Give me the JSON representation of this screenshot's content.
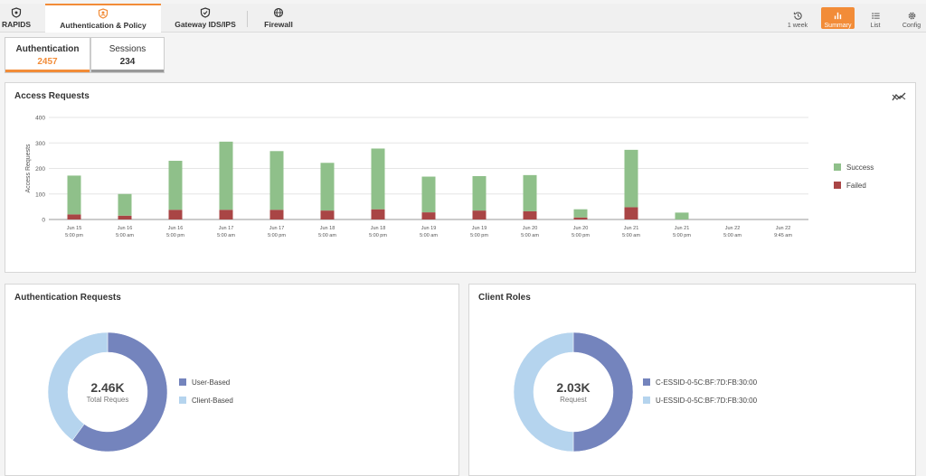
{
  "nav": {
    "tabs": [
      {
        "label": "RAPIDS",
        "icon": "shield-icon"
      },
      {
        "label": "Authentication & Policy",
        "icon": "shield-user-icon"
      },
      {
        "label": "Gateway IDS/IPS",
        "icon": "shield-check-icon"
      },
      {
        "label": "Firewall",
        "icon": "globe-icon"
      }
    ],
    "tools": [
      {
        "label": "1 week",
        "icon": "history-icon"
      },
      {
        "label": "Summary",
        "icon": "bar-chart-icon"
      },
      {
        "label": "List",
        "icon": "list-icon"
      },
      {
        "label": "Config",
        "icon": "gear-icon"
      }
    ],
    "accent": "#f28c38"
  },
  "subtabs": [
    {
      "label": "Authentication",
      "count": "2457"
    },
    {
      "label": "Sessions",
      "count": "234"
    }
  ],
  "access_requests": {
    "title": "Access Requests",
    "chart_data": {
      "type": "bar",
      "stacked": true,
      "ylabel": "Access Requests",
      "ylim": [
        0,
        400
      ],
      "yticks": [
        "0",
        "100",
        "200",
        "300",
        "400"
      ],
      "categories": [
        [
          "Jun 15",
          "5:00 pm"
        ],
        [
          "Jun 16",
          "5:00 am"
        ],
        [
          "Jun 16",
          "5:00 pm"
        ],
        [
          "Jun 17",
          "5:00 am"
        ],
        [
          "Jun 17",
          "5:00 pm"
        ],
        [
          "Jun 18",
          "5:00 am"
        ],
        [
          "Jun 18",
          "5:00 pm"
        ],
        [
          "Jun 19",
          "5:00 am"
        ],
        [
          "Jun 19",
          "5:00 pm"
        ],
        [
          "Jun 20",
          "5:00 am"
        ],
        [
          "Jun 20",
          "5:00 pm"
        ],
        [
          "Jun 21",
          "5:00 am"
        ],
        [
          "Jun 21",
          "5:00 pm"
        ],
        [
          "Jun 22",
          "5:00 am"
        ],
        [
          "Jun 22",
          "9:45 am"
        ]
      ],
      "series": [
        {
          "name": "Failed",
          "color": "#a94545",
          "values": [
            20,
            15,
            38,
            38,
            38,
            35,
            40,
            28,
            35,
            32,
            8,
            48,
            0,
            0,
            0
          ]
        },
        {
          "name": "Success",
          "color": "#8fc08a",
          "values": [
            152,
            85,
            192,
            267,
            230,
            187,
            238,
            140,
            135,
            142,
            32,
            225,
            27,
            0,
            0
          ]
        }
      ],
      "legend": [
        "Success",
        "Failed"
      ],
      "legend_position": "right",
      "grid": true
    }
  },
  "auth_requests": {
    "title": "Authentication Requests",
    "chart_data": {
      "type": "pie",
      "donut": true,
      "center_value": "2.46K",
      "center_label": "Total Reques",
      "slices": [
        {
          "name": "User-Based",
          "value": 0.6,
          "color": "#7484bd"
        },
        {
          "name": "Client-Based",
          "value": 0.4,
          "color": "#b5d4ee"
        }
      ]
    }
  },
  "client_roles": {
    "title": "Client Roles",
    "chart_data": {
      "type": "pie",
      "donut": true,
      "center_value": "2.03K",
      "center_label": "Request",
      "slices": [
        {
          "name": "C-ESSID-0-5C:BF:7D:FB:30:00",
          "value": 0.5,
          "color": "#7484bd"
        },
        {
          "name": "U-ESSID-0-5C:BF:7D:FB:30:00",
          "value": 0.5,
          "color": "#b5d4ee"
        }
      ]
    }
  }
}
